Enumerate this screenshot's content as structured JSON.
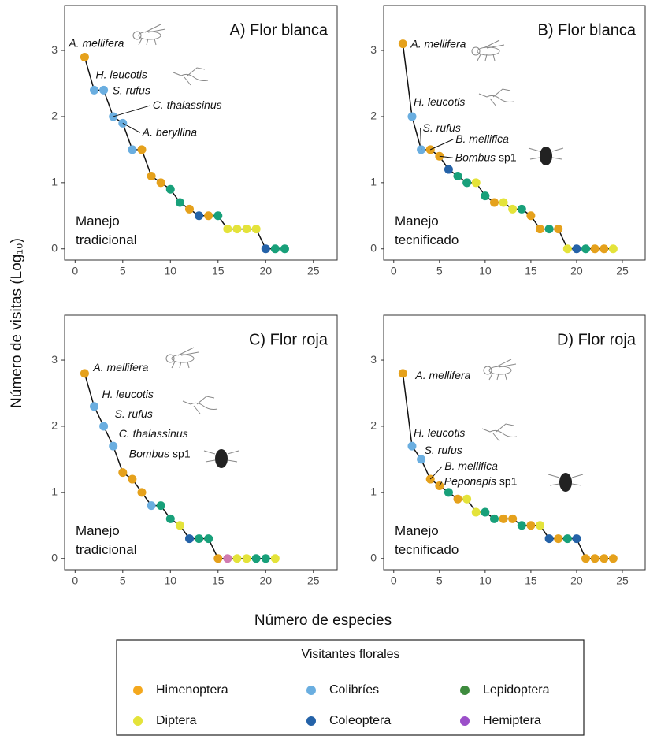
{
  "chart_data": [
    {
      "type": "scatter",
      "title": "A) Flor blanca",
      "note": "Manejo tradicional",
      "x": [
        1,
        2,
        3,
        4,
        5,
        6,
        7,
        8,
        9,
        10,
        11,
        12,
        13,
        14,
        15,
        16,
        17,
        18,
        19,
        20,
        21,
        22
      ],
      "values": [
        2.9,
        2.4,
        2.4,
        2.0,
        1.9,
        1.5,
        1.5,
        1.1,
        1.0,
        0.9,
        0.7,
        0.6,
        0.5,
        0.5,
        0.5,
        0.3,
        0.3,
        0.3,
        0.3,
        0,
        0,
        0
      ],
      "point_colors": [
        "#E5A11C",
        "#6AAEE0",
        "#6AAEE0",
        "#6AAEE0",
        "#6AAEE0",
        "#6AAEE0",
        "#E5A11C",
        "#E5A11C",
        "#E5A11C",
        "#18A07A",
        "#18A07A",
        "#E5A11C",
        "#2462A8",
        "#E5A11C",
        "#18A07A",
        "#E4E33A",
        "#E4E33A",
        "#E4E33A",
        "#E4E33A",
        "#2462A8",
        "#18A07A",
        "#18A07A"
      ],
      "annotations": [
        "A. mellifera",
        "H. leucotis",
        "S. rufus",
        "C. thalassinus",
        "A. beryllina"
      ],
      "xlim": [
        -1.1,
        27.5
      ],
      "ylim": [
        -0.17,
        3.68
      ],
      "xticks": [
        0,
        5,
        10,
        15,
        20,
        25
      ],
      "yticks": [
        0,
        1,
        2,
        3
      ]
    },
    {
      "type": "scatter",
      "title": "B) Flor blanca",
      "note": "Manejo tecnificado",
      "x": [
        1,
        2,
        3,
        4,
        5,
        6,
        7,
        8,
        9,
        10,
        11,
        12,
        13,
        14,
        15,
        16,
        17,
        18,
        19,
        20,
        21,
        22,
        23,
        24
      ],
      "values": [
        3.1,
        2.0,
        1.5,
        1.5,
        1.4,
        1.2,
        1.1,
        1.0,
        1.0,
        0.8,
        0.7,
        0.7,
        0.6,
        0.6,
        0.5,
        0.3,
        0.3,
        0.3,
        0,
        0,
        0,
        0,
        0,
        0
      ],
      "point_colors": [
        "#E5A11C",
        "#6AAEE0",
        "#6AAEE0",
        "#E5A11C",
        "#E5A11C",
        "#2462A8",
        "#18A07A",
        "#18A07A",
        "#E4E33A",
        "#18A07A",
        "#E5A11C",
        "#E4E33A",
        "#E4E33A",
        "#18A07A",
        "#E5A11C",
        "#E5A11C",
        "#18A07A",
        "#E5A11C",
        "#E4E33A",
        "#2462A8",
        "#18A07A",
        "#E5A11C",
        "#E5A11C",
        "#E4E33A"
      ],
      "annotations": [
        "A. mellifera",
        "H. leucotis",
        "S. rufus",
        "B. mellifica",
        "Bombus sp1"
      ],
      "xlim": [
        -1.1,
        27.5
      ],
      "ylim": [
        -0.17,
        3.68
      ],
      "xticks": [
        0,
        5,
        10,
        15,
        20,
        25
      ],
      "yticks": [
        0,
        1,
        2,
        3
      ]
    },
    {
      "type": "scatter",
      "title": "C) Flor roja",
      "note": "Manejo tradicional",
      "x": [
        1,
        2,
        3,
        4,
        5,
        6,
        7,
        8,
        9,
        10,
        11,
        12,
        13,
        14,
        15,
        16,
        17,
        18,
        19,
        20,
        21
      ],
      "values": [
        2.8,
        2.3,
        2.0,
        1.7,
        1.3,
        1.2,
        1.0,
        0.8,
        0.8,
        0.6,
        0.5,
        0.3,
        0.3,
        0.3,
        0,
        0,
        0,
        0,
        0,
        0,
        0
      ],
      "point_colors": [
        "#E5A11C",
        "#6AAEE0",
        "#6AAEE0",
        "#6AAEE0",
        "#E5A11C",
        "#E5A11C",
        "#E5A11C",
        "#6AAEE0",
        "#18A07A",
        "#18A07A",
        "#E4E33A",
        "#2462A8",
        "#18A07A",
        "#18A07A",
        "#E5A11C",
        "#D07BB0",
        "#E4E33A",
        "#E4E33A",
        "#18A07A",
        "#18A07A",
        "#E4E33A"
      ],
      "annotations": [
        "A. mellifera",
        "H. leucotis",
        "S. rufus",
        "C. thalassinus",
        "Bombus sp1"
      ],
      "xlim": [
        -1.1,
        27.5
      ],
      "ylim": [
        -0.17,
        3.68
      ],
      "xticks": [
        0,
        5,
        10,
        15,
        20,
        25
      ],
      "yticks": [
        0,
        1,
        2,
        3
      ]
    },
    {
      "type": "scatter",
      "title": "D) Flor roja",
      "note": "Manejo tecnificado",
      "x": [
        1,
        2,
        3,
        4,
        5,
        6,
        7,
        8,
        9,
        10,
        11,
        12,
        13,
        14,
        15,
        16,
        17,
        18,
        19,
        20,
        21,
        22,
        23,
        24
      ],
      "values": [
        2.8,
        1.7,
        1.5,
        1.2,
        1.1,
        1.0,
        0.9,
        0.9,
        0.7,
        0.7,
        0.6,
        0.6,
        0.6,
        0.5,
        0.5,
        0.5,
        0.3,
        0.3,
        0.3,
        0.3,
        0,
        0,
        0,
        0
      ],
      "point_colors": [
        "#E5A11C",
        "#6AAEE0",
        "#6AAEE0",
        "#E5A11C",
        "#E5A11C",
        "#18A07A",
        "#E5A11C",
        "#E4E33A",
        "#E4E33A",
        "#18A07A",
        "#18A07A",
        "#E5A11C",
        "#E5A11C",
        "#18A07A",
        "#E5A11C",
        "#E4E33A",
        "#2462A8",
        "#E5A11C",
        "#18A07A",
        "#2462A8",
        "#E5A11C",
        "#E5A11C",
        "#E5A11C",
        "#E5A11C"
      ],
      "annotations": [
        "A. mellifera",
        "H. leucotis",
        "S. rufus",
        "B. mellifica",
        "Peponapis sp1"
      ],
      "xlim": [
        -1.1,
        27.5
      ],
      "ylim": [
        -0.17,
        3.68
      ],
      "xticks": [
        0,
        5,
        10,
        15,
        20,
        25
      ],
      "yticks": [
        0,
        1,
        2,
        3
      ]
    }
  ],
  "figure": {
    "xlabel": "Número de especies",
    "ylabel": "Número de visitas (Log₁₀)"
  },
  "legend": {
    "title": "Visitantes florales",
    "entries": [
      {
        "name": "Himenoptera",
        "color": "#F4A81D"
      },
      {
        "name": "Colibríes",
        "color": "#6AAEE0"
      },
      {
        "name": "Lepidoptera",
        "color": "#3E8B3E"
      },
      {
        "name": "Diptera",
        "color": "#E4E33A"
      },
      {
        "name": "Coleoptera",
        "color": "#2462A8"
      },
      {
        "name": "Hemiptera",
        "color": "#9B4FC9"
      }
    ]
  }
}
